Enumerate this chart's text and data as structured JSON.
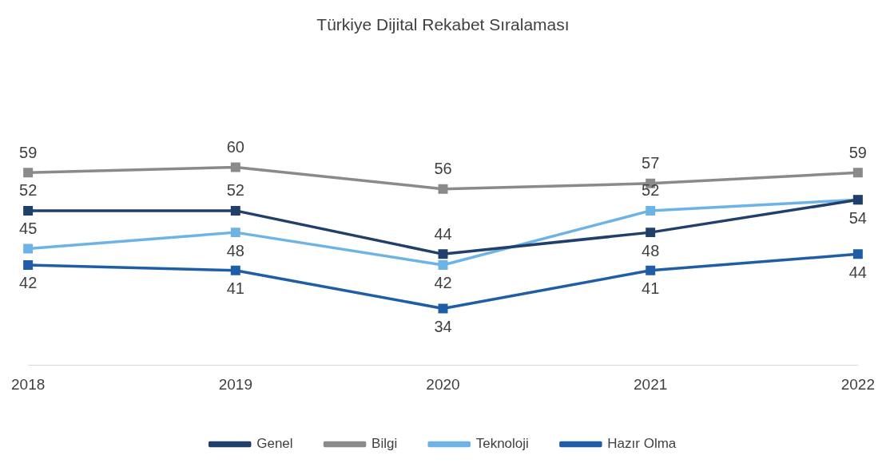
{
  "chart_data": {
    "type": "line",
    "title": "Türkiye Dijital Rekabet Sıralaması",
    "categories": [
      "2018",
      "2019",
      "2020",
      "2021",
      "2022"
    ],
    "series": [
      {
        "name": "Genel",
        "color": "#203f6b",
        "values": [
          52,
          52,
          44,
          48,
          54
        ],
        "value_labels": [
          "52",
          "52",
          "44",
          "48",
          null
        ]
      },
      {
        "name": "Bilgi",
        "color": "#8a8a8a",
        "values": [
          59,
          60,
          56,
          57,
          59
        ],
        "value_labels": [
          "59",
          "60",
          "56",
          "57",
          "59"
        ]
      },
      {
        "name": "Teknoloji",
        "color": "#6db3e6",
        "values": [
          45,
          48,
          42,
          52,
          54
        ],
        "value_labels": [
          "45",
          "48",
          "42",
          "52",
          "54"
        ]
      },
      {
        "name": "Hazır Olma",
        "color": "#1f5ea6",
        "values": [
          42,
          41,
          34,
          41,
          44
        ],
        "value_labels": [
          "42",
          "41",
          "34",
          "41",
          "44"
        ]
      }
    ],
    "marker": "square",
    "legend": "bottom",
    "grid": false
  }
}
